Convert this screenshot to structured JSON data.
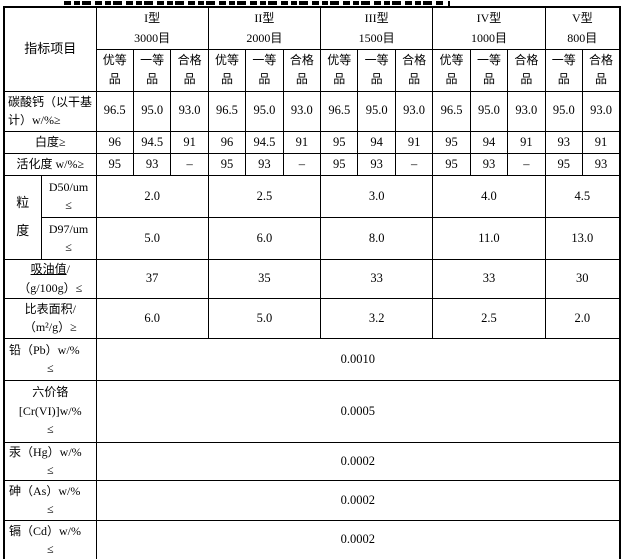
{
  "table": {
    "corner_header": "指标项目",
    "type_groups": [
      {
        "type": "I型",
        "mesh": "3000目",
        "grades": [
          "优等品",
          "一等品",
          "合格品"
        ]
      },
      {
        "type": "II型",
        "mesh": "2000目",
        "grades": [
          "优等品",
          "一等品",
          "合格品"
        ]
      },
      {
        "type": "III型",
        "mesh": "1500目",
        "grades": [
          "优等品",
          "一等品",
          "合格品"
        ]
      },
      {
        "type": "IV型",
        "mesh": "1000目",
        "grades": [
          "优等品",
          "一等品",
          "合格品"
        ]
      },
      {
        "type": "V型",
        "mesh": "800目",
        "grades": [
          "一等品",
          "合格品"
        ]
      }
    ],
    "rows": {
      "caco3": {
        "label": "碳酸钙（以干基计）w/%≥",
        "values": [
          "96.5",
          "95.0",
          "93.0",
          "96.5",
          "95.0",
          "93.0",
          "96.5",
          "95.0",
          "93.0",
          "96.5",
          "95.0",
          "93.0",
          "95.0",
          "93.0"
        ]
      },
      "whiteness": {
        "label": "白度≥",
        "values": [
          "96",
          "94.5",
          "91",
          "96",
          "94.5",
          "91",
          "95",
          "94",
          "91",
          "95",
          "94",
          "91",
          "93",
          "91"
        ]
      },
      "activation": {
        "label": "活化度 w/%≥",
        "values": [
          "95",
          "93",
          "–",
          "95",
          "93",
          "–",
          "95",
          "93",
          "–",
          "95",
          "93",
          "–",
          "95",
          "93"
        ]
      },
      "particle": {
        "label": "粒度",
        "d50": {
          "label": "D50/um",
          "op": "≤",
          "values": [
            "2.0",
            "2.5",
            "3.0",
            "4.0",
            "4.5"
          ]
        },
        "d97": {
          "label": "D97/um",
          "op": "≤",
          "values": [
            "5.0",
            "6.0",
            "8.0",
            "11.0",
            "13.0"
          ]
        }
      },
      "oil": {
        "l1_u": "吸油值",
        "l1_rest": "/",
        "l2": "（g/100g）≤",
        "values": [
          "37",
          "35",
          "33",
          "33",
          "30"
        ]
      },
      "surface": {
        "l1": "比表面积/",
        "l2": "（m²/g）≥",
        "values": [
          "6.0",
          "5.0",
          "3.2",
          "2.5",
          "2.0"
        ]
      },
      "lead": {
        "l1": "铅（Pb）w/%",
        "op": "≤",
        "value": "0.0010"
      },
      "chromium": {
        "l1": "六价铬",
        "l2": "[Cr(VI)]w/%",
        "op": "≤",
        "value": "0.0005"
      },
      "mercury": {
        "l1": "汞（Hg）w/%",
        "op": "≤",
        "value": "0.0002"
      },
      "arsenic": {
        "l1": "砷（As）w/%",
        "op": "≤",
        "value": "0.0002"
      },
      "cadmium": {
        "l1": "镉（Cd）w/%",
        "op": "≤",
        "value": "0.0002"
      }
    }
  }
}
